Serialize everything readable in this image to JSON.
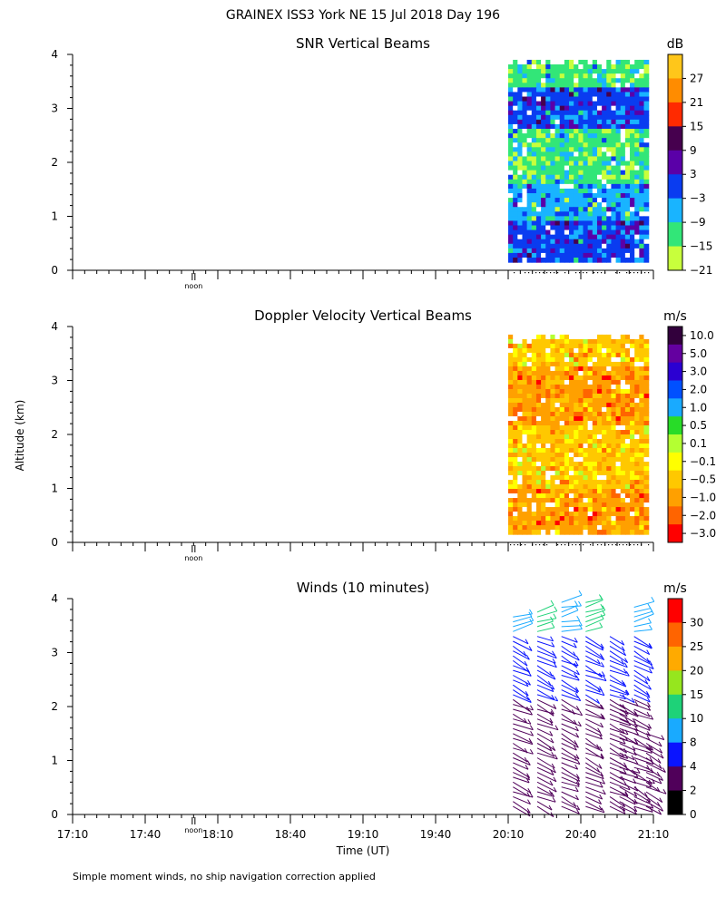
{
  "header": {
    "title": "GRAINEX ISS3 York NE  15 Jul 2018 Day 196"
  },
  "ylabel": "Altitude (km)",
  "xlabel": "Time (UT)",
  "footer": {
    "note": "Simple moment winds, no ship navigation correction applied"
  },
  "noon_label": "noon",
  "colors": {
    "axis": "#000000",
    "missing": "#ffffff"
  },
  "chart_data": [
    {
      "type": "heatmap",
      "title": "SNR Vertical Beams",
      "units": "dB",
      "ylim": [
        0,
        4
      ],
      "y_ticks": [
        "0",
        "1",
        "2",
        "3",
        "4"
      ],
      "x_ticks": [
        "17:10",
        "17:40",
        "18:10",
        "18:40",
        "19:10",
        "19:40",
        "20:10",
        "20:40",
        "21:10"
      ],
      "data_time_range": [
        "20:10",
        "21:08"
      ],
      "data_altitude_range_km": [
        0.15,
        3.9
      ],
      "colorbar": {
        "labels": [
          "27",
          "21",
          "15",
          "9",
          "3",
          "−3",
          "−9",
          "−15",
          "−21"
        ],
        "colors": [
          "#ffc61a",
          "#ff8c00",
          "#ff2a00",
          "#46004e",
          "#5a00a8",
          "#0a3cf0",
          "#19b4ff",
          "#32e678",
          "#c8ff3c"
        ]
      },
      "layers_by_altitude": [
        {
          "alt": [
            0.15,
            0.9
          ],
          "dominant": "#0a3cf0"
        },
        {
          "alt": [
            0.9,
            1.6
          ],
          "dominant": "#19b4ff"
        },
        {
          "alt": [
            1.6,
            2.6
          ],
          "dominant": "#32e678"
        },
        {
          "alt": [
            2.6,
            3.4
          ],
          "dominant": "#0a3cf0"
        },
        {
          "alt": [
            3.4,
            3.9
          ],
          "dominant": "#32e678"
        }
      ]
    },
    {
      "type": "heatmap",
      "title": "Doppler Velocity Vertical Beams",
      "units": "m/s",
      "ylim": [
        0,
        4
      ],
      "y_ticks": [
        "0",
        "1",
        "2",
        "3",
        "4"
      ],
      "data_time_range": [
        "20:10",
        "21:08"
      ],
      "data_altitude_range_km": [
        0.15,
        3.85
      ],
      "colorbar": {
        "labels": [
          "10.0",
          "5.0",
          "3.0",
          "2.0",
          "1.0",
          "0.5",
          "0.1",
          "−0.1",
          "−0.5",
          "−1.0",
          "−2.0",
          "−3.0"
        ],
        "colors": [
          "#32003c",
          "#6400a0",
          "#2b00d2",
          "#0050ff",
          "#19aaff",
          "#28dc28",
          "#b4ff32",
          "#ffff00",
          "#ffc800",
          "#ffa000",
          "#ff6400",
          "#ff0000"
        ]
      },
      "layers_by_altitude": [
        {
          "alt": [
            0.15,
            1.0
          ],
          "dominant": "#ffa000"
        },
        {
          "alt": [
            1.0,
            2.2
          ],
          "dominant": "#ffc800"
        },
        {
          "alt": [
            2.2,
            3.3
          ],
          "dominant": "#ffa000"
        },
        {
          "alt": [
            3.3,
            3.85
          ],
          "dominant": "#ffc800"
        }
      ]
    },
    {
      "type": "scatter",
      "subtype": "wind-barbs",
      "title": "Winds (10 minutes)",
      "units": "m/s",
      "ylim": [
        0,
        4
      ],
      "y_ticks": [
        "0",
        "1",
        "2",
        "3",
        "4"
      ],
      "colorbar": {
        "labels": [
          "30",
          "25",
          "20",
          "15",
          "10",
          "8",
          "4",
          "2",
          "0"
        ],
        "colors": [
          "#ff0000",
          "#ff6400",
          "#ffaa00",
          "#96e61e",
          "#1ed278",
          "#19aaff",
          "#0a14ff",
          "#50005a",
          "#000000"
        ]
      },
      "profiles": [
        {
          "time": "20:12",
          "alt_range": [
            0.15,
            3.7
          ]
        },
        {
          "time": "20:22",
          "alt_range": [
            0.15,
            3.8
          ]
        },
        {
          "time": "20:32",
          "alt_range": [
            0.15,
            3.95
          ]
        },
        {
          "time": "20:42",
          "alt_range": [
            0.15,
            4.0
          ]
        },
        {
          "time": "20:52",
          "alt_range": [
            0.15,
            3.3
          ]
        },
        {
          "time": "20:56",
          "alt_range": [
            0.15,
            2.3
          ]
        },
        {
          "time": "21:02",
          "alt_range": [
            0.15,
            3.9
          ]
        },
        {
          "time": "21:07",
          "alt_range": [
            0.15,
            1.5
          ]
        }
      ]
    }
  ]
}
